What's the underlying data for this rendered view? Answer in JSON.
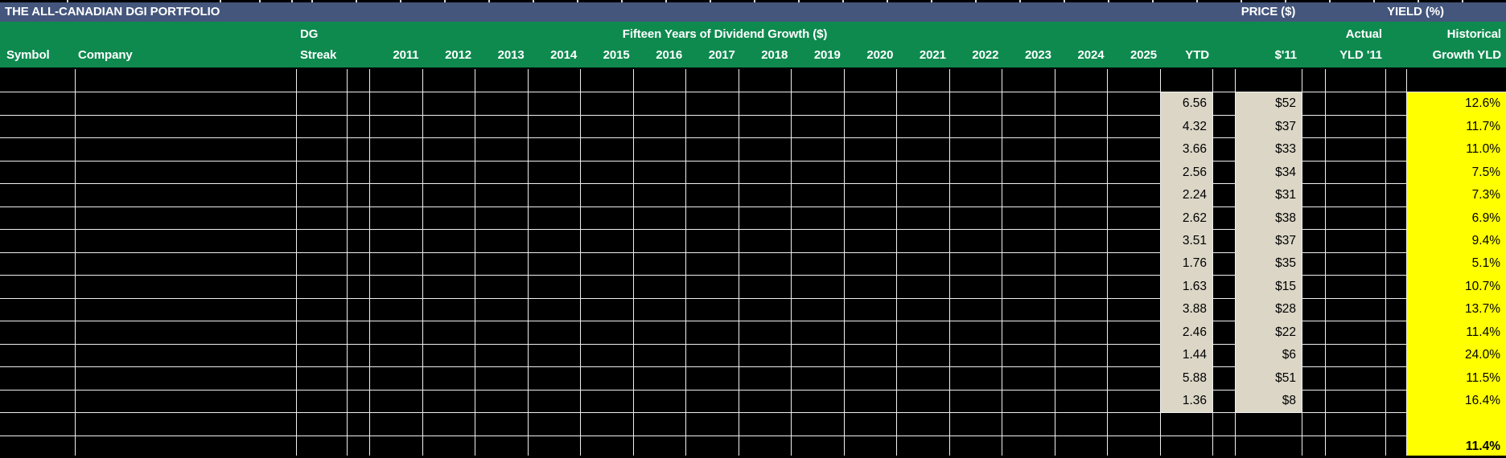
{
  "colors": {
    "title_bar_blue": "#44567C",
    "header_green": "#0E8A4F",
    "cell_beige": "#DBD6C6",
    "cell_yellow": "#FFFF00",
    "grid_line": "#EFEFEF"
  },
  "title_bar": {
    "title": "THE ALL-CANADIAN DGI PORTFOLIO",
    "price_group_label": "PRICE ($)",
    "yield_group_label": "YIELD (%)"
  },
  "header": {
    "symbol_label": "Symbol",
    "company_label": "Company",
    "dg_streak_line1": "DG",
    "dg_streak_line2": "Streak",
    "dividend_growth_group_label": "Fifteen Years of Dividend Growth ($)",
    "years": [
      "2011",
      "2012",
      "2013",
      "2014",
      "2015",
      "2016",
      "2017",
      "2018",
      "2019",
      "2020",
      "2021",
      "2022",
      "2023",
      "2024",
      "2025"
    ],
    "ytd_label": "YTD",
    "price_2011_label": "$'11",
    "actual_yield_line1": "Actual",
    "actual_yield_line2": "YLD '11",
    "historical_growth_line1": "Historical",
    "historical_growth_line2": "Growth YLD"
  },
  "table": {
    "rows": [
      {
        "ytd": "",
        "price_11": "",
        "growth_yld": ""
      },
      {
        "ytd": "6.56",
        "price_11": "$52",
        "growth_yld": "12.6%"
      },
      {
        "ytd": "4.32",
        "price_11": "$37",
        "growth_yld": "11.7%"
      },
      {
        "ytd": "3.66",
        "price_11": "$33",
        "growth_yld": "11.0%"
      },
      {
        "ytd": "2.56",
        "price_11": "$34",
        "growth_yld": "7.5%"
      },
      {
        "ytd": "2.24",
        "price_11": "$31",
        "growth_yld": "7.3%"
      },
      {
        "ytd": "2.62",
        "price_11": "$38",
        "growth_yld": "6.9%"
      },
      {
        "ytd": "3.51",
        "price_11": "$37",
        "growth_yld": "9.4%"
      },
      {
        "ytd": "1.76",
        "price_11": "$35",
        "growth_yld": "5.1%"
      },
      {
        "ytd": "1.63",
        "price_11": "$15",
        "growth_yld": "10.7%"
      },
      {
        "ytd": "3.88",
        "price_11": "$28",
        "growth_yld": "13.7%"
      },
      {
        "ytd": "2.46",
        "price_11": "$22",
        "growth_yld": "11.4%"
      },
      {
        "ytd": "1.44",
        "price_11": "$6",
        "growth_yld": "24.0%"
      },
      {
        "ytd": "5.88",
        "price_11": "$51",
        "growth_yld": "11.5%"
      },
      {
        "ytd": "1.36",
        "price_11": "$8",
        "growth_yld": "16.4%"
      },
      {
        "ytd": "",
        "price_11": "",
        "growth_yld": ""
      },
      {
        "ytd": "",
        "price_11": "",
        "growth_yld": "11.4%"
      }
    ]
  }
}
